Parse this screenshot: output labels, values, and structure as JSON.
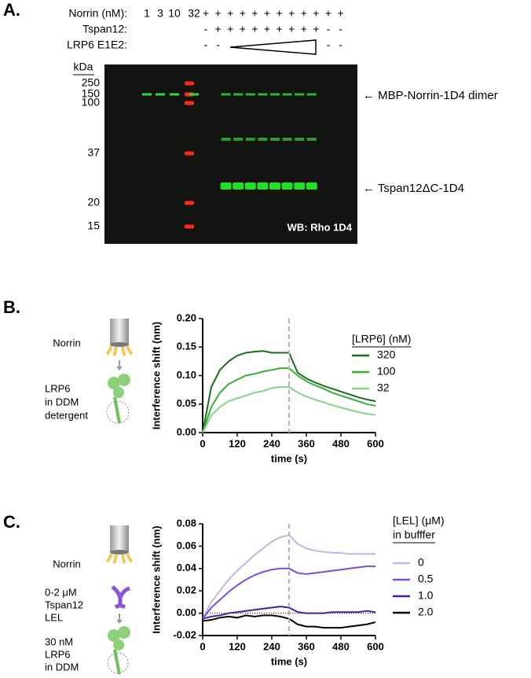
{
  "panel_labels": [
    "A.",
    "B.",
    "C."
  ],
  "blot": {
    "rows": [
      {
        "label": "Norrin (nM):",
        "lanes": [
          "1",
          "3",
          "10",
          "32",
          "+",
          "+",
          "+",
          "+",
          "+",
          "+",
          "+",
          "+",
          "+",
          "+",
          "+",
          "+"
        ]
      },
      {
        "label": "Tspan12:",
        "lanes": [
          "-",
          "+",
          "+",
          "+",
          "+",
          "+",
          "+",
          "+",
          "+",
          "+",
          "-",
          "-"
        ]
      },
      {
        "label": "LRP6 E1E2:",
        "lanes": [
          "-",
          "-",
          null,
          null,
          null,
          null,
          null,
          null,
          null,
          null,
          "-",
          "-"
        ]
      }
    ],
    "mw_unit": "kDa",
    "mw_markers": [
      "250",
      "150",
      "100",
      "37",
      "20",
      "15"
    ],
    "band_labels": [
      "← MBP-Norrin-1D4 dimer",
      "← Tspan12ΔC-1D4"
    ],
    "stain": "WB: Rho 1D4"
  },
  "schematics": {
    "B": {
      "ligand": "Norrin",
      "analyte": [
        "LRP6",
        "in DDM",
        "detergent"
      ]
    },
    "C": {
      "ligand": "Norrin",
      "competitor": [
        "0-2 μM",
        "Tspan12",
        "LEL"
      ],
      "analyte": [
        "30 nM",
        "LRP6",
        "in DDM"
      ]
    }
  },
  "chart_data": [
    {
      "type": "line",
      "ylabel": "Interference shift (nm)",
      "xlabel": "time (s)",
      "legend_title": [
        "[LRP6] (nM)"
      ],
      "x": [
        0,
        30,
        60,
        90,
        120,
        150,
        180,
        210,
        240,
        270,
        300,
        330,
        360,
        390,
        420,
        450,
        480,
        510,
        540,
        570,
        600
      ],
      "series": [
        {
          "name": "320",
          "color": "#1e6b1f",
          "values": [
            0,
            0.08,
            0.11,
            0.125,
            0.135,
            0.14,
            0.142,
            0.143,
            0.14,
            0.14,
            0.14,
            0.105,
            0.095,
            0.088,
            0.082,
            0.077,
            0.072,
            0.067,
            0.062,
            0.058,
            0.055
          ]
        },
        {
          "name": "100",
          "color": "#35b035",
          "values": [
            0,
            0.045,
            0.07,
            0.085,
            0.093,
            0.1,
            0.103,
            0.107,
            0.11,
            0.113,
            0.113,
            0.1,
            0.09,
            0.083,
            0.077,
            0.07,
            0.065,
            0.06,
            0.055,
            0.05,
            0.047
          ]
        },
        {
          "name": "32",
          "color": "#86d486",
          "values": [
            0,
            0.03,
            0.045,
            0.055,
            0.06,
            0.065,
            0.07,
            0.073,
            0.078,
            0.08,
            0.08,
            0.07,
            0.063,
            0.058,
            0.053,
            0.048,
            0.044,
            0.04,
            0.036,
            0.033,
            0.031
          ]
        }
      ],
      "xlim": [
        0,
        600
      ],
      "xticks": [
        0,
        120,
        240,
        360,
        480,
        600
      ],
      "ylim": [
        0,
        0.2
      ],
      "yticks": [
        {
          "value": 0,
          "label": "0.00"
        },
        {
          "value": 0.05,
          "label": "0.05"
        },
        {
          "value": 0.1,
          "label": "0.10"
        },
        {
          "value": 0.15,
          "label": "0.15"
        },
        {
          "value": 0.2,
          "label": "0.20"
        }
      ],
      "vline": 300
    },
    {
      "type": "line",
      "ylabel": "Interference shift (nm)",
      "xlabel": "time (s)",
      "legend_title": [
        "[LEL] (μM)",
        "in bufffer"
      ],
      "x": [
        0,
        30,
        60,
        90,
        120,
        150,
        180,
        210,
        240,
        270,
        300,
        330,
        360,
        390,
        420,
        450,
        480,
        510,
        540,
        570,
        600
      ],
      "series": [
        {
          "name": "0",
          "color": "#c4b5ea",
          "values": [
            -0.005,
            0.01,
            0.02,
            0.03,
            0.038,
            0.045,
            0.052,
            0.058,
            0.064,
            0.068,
            0.07,
            0.062,
            0.058,
            0.056,
            0.055,
            0.054,
            0.054,
            0.053,
            0.053,
            0.053,
            0.053
          ]
        },
        {
          "name": "0.5",
          "color": "#7b50d6",
          "values": [
            -0.005,
            0.005,
            0.012,
            0.019,
            0.025,
            0.03,
            0.034,
            0.037,
            0.039,
            0.04,
            0.04,
            0.036,
            0.035,
            0.036,
            0.037,
            0.038,
            0.039,
            0.04,
            0.041,
            0.042,
            0.042
          ]
        },
        {
          "name": "1.0",
          "color": "#4a1fa6",
          "values": [
            -0.005,
            -0.003,
            -0.002,
            0,
            0.001,
            0.002,
            0.003,
            0.004,
            0.005,
            0.006,
            0.005,
            0.001,
            0,
            0,
            0,
            0.001,
            0.001,
            0.001,
            0.001,
            0.002,
            0.001
          ]
        },
        {
          "name": "2.0",
          "color": "#000000",
          "values": [
            -0.007,
            -0.006,
            -0.004,
            -0.003,
            -0.004,
            -0.002,
            -0.003,
            -0.002,
            -0.002,
            -0.003,
            -0.005,
            -0.01,
            -0.012,
            -0.012,
            -0.013,
            -0.013,
            -0.013,
            -0.012,
            -0.011,
            -0.01,
            -0.008
          ]
        }
      ],
      "xlim": [
        0,
        600
      ],
      "xticks": [
        0,
        120,
        240,
        360,
        480,
        600
      ],
      "ylim": [
        -0.02,
        0.08
      ],
      "yticks": [
        {
          "value": -0.02,
          "label": "-0.02"
        },
        {
          "value": 0,
          "label": "0.00"
        },
        {
          "value": 0.02,
          "label": "0.02"
        },
        {
          "value": 0.04,
          "label": "0.04"
        },
        {
          "value": 0.06,
          "label": "0.06"
        },
        {
          "value": 0.08,
          "label": "0.08"
        }
      ],
      "vline": 300,
      "zero_line": true
    }
  ]
}
